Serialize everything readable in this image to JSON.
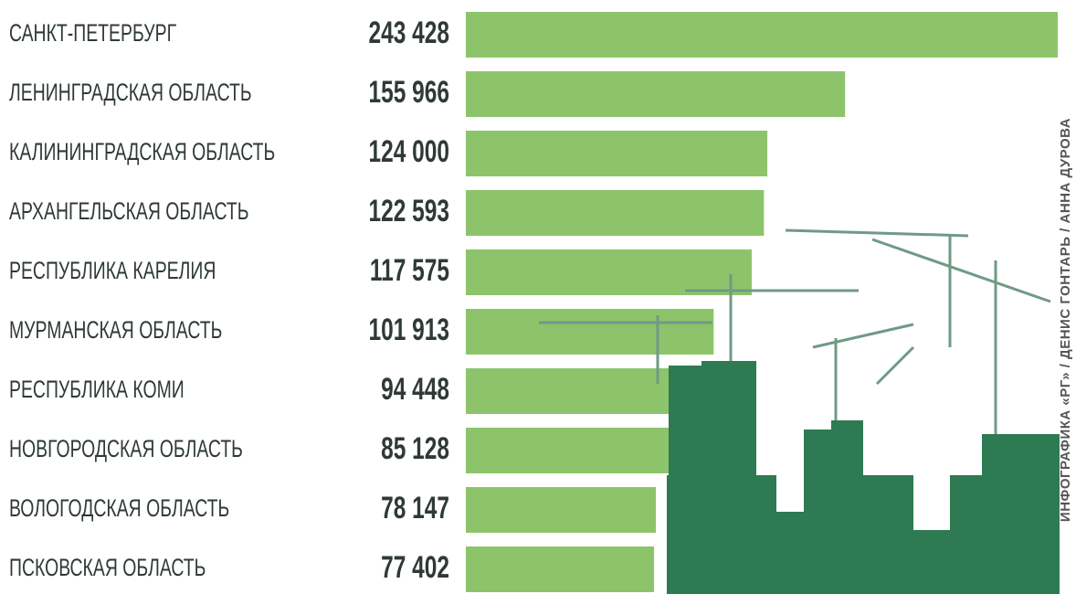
{
  "chart_data": {
    "type": "bar",
    "orientation": "horizontal",
    "categories": [
      "САНКТ-ПЕТЕРБУРГ",
      "ЛЕНИНГРАДСКАЯ ОБЛАСТЬ",
      "КАЛИНИНГРАДСКАЯ ОБЛАСТЬ",
      "АРХАНГЕЛЬСКАЯ ОБЛАСТЬ",
      "РЕСПУБЛИКА КАРЕЛИЯ",
      "МУРМАНСКАЯ ОБЛАСТЬ",
      "РЕСПУБЛИКА КОМИ",
      "НОВГОРОДСКАЯ ОБЛАСТЬ",
      "ВОЛОГОДСКАЯ ОБЛАСТЬ",
      "ПСКОВСКАЯ ОБЛАСТЬ"
    ],
    "values": [
      243428,
      155966,
      124000,
      122593,
      117575,
      101913,
      94448,
      85128,
      78147,
      77402
    ],
    "value_labels": [
      "243 428",
      "155 966",
      "124 000",
      "122 593",
      "117 575",
      "101 913",
      "94 448",
      "85 128",
      "78 147",
      "77 402"
    ],
    "color": "#8dc46b",
    "credit": "ИНФОГРАФИКА «РГ» / ДЕНИС ГОНТАРЬ / АННА ДУРОВА"
  }
}
